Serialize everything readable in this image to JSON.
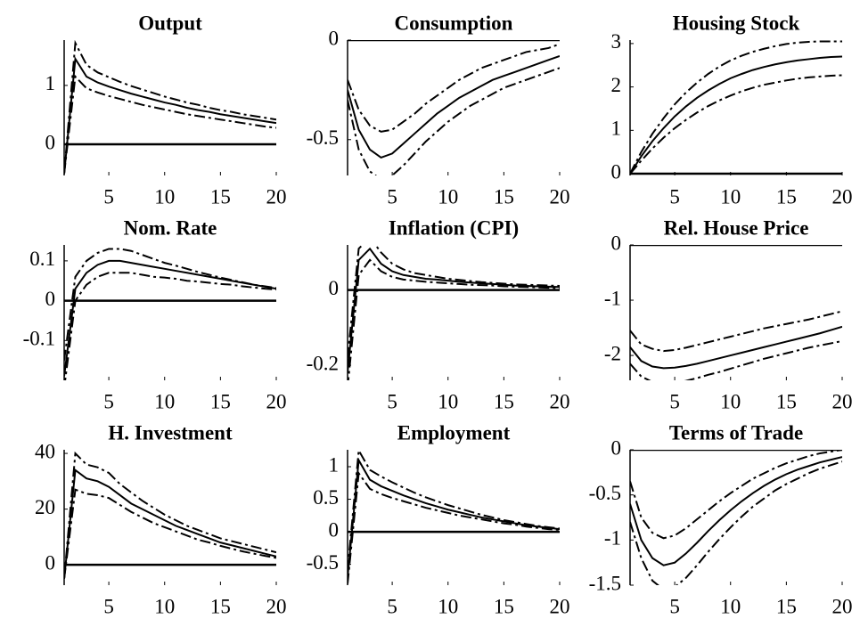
{
  "chart_data": [
    {
      "type": "line",
      "title": "Output",
      "x": [
        1,
        2,
        3,
        4,
        5,
        6,
        7,
        8,
        9,
        10,
        11,
        12,
        13,
        14,
        15,
        16,
        17,
        18,
        19,
        20
      ],
      "xlim": [
        1,
        20
      ],
      "xticks": [
        5,
        10,
        15,
        20
      ],
      "ylim": [
        -0.53,
        1.77
      ],
      "yticks": [
        0,
        1
      ],
      "reference_line": 0,
      "series": [
        {
          "color": "#000000",
          "dash": "solid",
          "values": [
            -0.5,
            1.45,
            1.15,
            1.05,
            0.98,
            0.92,
            0.86,
            0.81,
            0.76,
            0.71,
            0.67,
            0.62,
            0.58,
            0.55,
            0.51,
            0.48,
            0.45,
            0.42,
            0.39,
            0.36
          ]
        },
        {
          "color": "#000000",
          "dash": "dashdot",
          "values": [
            -0.5,
            1.72,
            1.35,
            1.22,
            1.14,
            1.06,
            0.99,
            0.93,
            0.87,
            0.81,
            0.76,
            0.71,
            0.67,
            0.62,
            0.58,
            0.55,
            0.51,
            0.48,
            0.45,
            0.42
          ]
        },
        {
          "color": "#000000",
          "dash": "dashdot",
          "values": [
            -0.5,
            1.15,
            0.95,
            0.88,
            0.82,
            0.77,
            0.72,
            0.67,
            0.63,
            0.59,
            0.55,
            0.51,
            0.48,
            0.45,
            0.42,
            0.39,
            0.36,
            0.33,
            0.3,
            0.28
          ]
        }
      ]
    },
    {
      "type": "line",
      "title": "Consumption",
      "x": [
        1,
        2,
        3,
        4,
        5,
        6,
        7,
        8,
        9,
        10,
        11,
        12,
        13,
        14,
        15,
        16,
        17,
        18,
        19,
        20
      ],
      "xlim": [
        1,
        20
      ],
      "xticks": [
        5,
        10,
        15,
        20
      ],
      "ylim": [
        -0.68,
        0
      ],
      "yticks": [
        -0.5,
        0
      ],
      "reference_line": 0,
      "series": [
        {
          "color": "#000000",
          "dash": "solid",
          "values": [
            -0.25,
            -0.45,
            -0.55,
            -0.59,
            -0.57,
            -0.52,
            -0.47,
            -0.42,
            -0.37,
            -0.33,
            -0.29,
            -0.26,
            -0.23,
            -0.2,
            -0.18,
            -0.16,
            -0.14,
            -0.12,
            -0.1,
            -0.08
          ]
        },
        {
          "color": "#000000",
          "dash": "dashdot",
          "values": [
            -0.2,
            -0.35,
            -0.43,
            -0.46,
            -0.45,
            -0.41,
            -0.37,
            -0.32,
            -0.28,
            -0.24,
            -0.2,
            -0.17,
            -0.14,
            -0.12,
            -0.1,
            -0.08,
            -0.06,
            -0.05,
            -0.04,
            -0.02
          ]
        },
        {
          "color": "#000000",
          "dash": "dashdot",
          "values": [
            -0.3,
            -0.55,
            -0.66,
            -0.7,
            -0.68,
            -0.63,
            -0.57,
            -0.51,
            -0.46,
            -0.41,
            -0.37,
            -0.33,
            -0.3,
            -0.27,
            -0.24,
            -0.22,
            -0.2,
            -0.18,
            -0.16,
            -0.14
          ]
        }
      ]
    },
    {
      "type": "line",
      "title": "Housing Stock",
      "x": [
        1,
        2,
        3,
        4,
        5,
        6,
        7,
        8,
        9,
        10,
        11,
        12,
        13,
        14,
        15,
        16,
        17,
        18,
        19,
        20
      ],
      "xlim": [
        1,
        20
      ],
      "xticks": [
        5,
        10,
        15,
        20
      ],
      "ylim": [
        -0.04,
        3.08
      ],
      "yticks": [
        0,
        1,
        2,
        3
      ],
      "reference_line": 0,
      "series": [
        {
          "color": "#000000",
          "dash": "solid",
          "values": [
            0,
            0.4,
            0.75,
            1.05,
            1.32,
            1.55,
            1.75,
            1.92,
            2.07,
            2.2,
            2.3,
            2.39,
            2.46,
            2.52,
            2.57,
            2.61,
            2.64,
            2.67,
            2.69,
            2.7
          ]
        },
        {
          "color": "#000000",
          "dash": "dashdot",
          "values": [
            0,
            0.5,
            0.92,
            1.28,
            1.6,
            1.87,
            2.1,
            2.3,
            2.47,
            2.61,
            2.72,
            2.81,
            2.88,
            2.94,
            2.99,
            3.02,
            3.04,
            3.05,
            3.05,
            3.05
          ]
        },
        {
          "color": "#000000",
          "dash": "dashdot",
          "values": [
            0,
            0.3,
            0.58,
            0.83,
            1.05,
            1.24,
            1.41,
            1.56,
            1.69,
            1.8,
            1.9,
            1.98,
            2.05,
            2.1,
            2.15,
            2.19,
            2.22,
            2.24,
            2.26,
            2.27
          ]
        }
      ]
    },
    {
      "type": "line",
      "title": "Nom. Rate",
      "x": [
        1,
        2,
        3,
        4,
        5,
        6,
        7,
        8,
        9,
        10,
        11,
        12,
        13,
        14,
        15,
        16,
        17,
        18,
        19,
        20
      ],
      "xlim": [
        1,
        20
      ],
      "xticks": [
        5,
        10,
        15,
        20
      ],
      "ylim": [
        -0.2,
        0.14
      ],
      "yticks": [
        -0.1,
        0,
        0.1
      ],
      "reference_line": 0,
      "series": [
        {
          "color": "#000000",
          "dash": "solid",
          "values": [
            -0.19,
            0.03,
            0.07,
            0.09,
            0.1,
            0.1,
            0.095,
            0.09,
            0.085,
            0.08,
            0.075,
            0.07,
            0.065,
            0.06,
            0.055,
            0.05,
            0.045,
            0.04,
            0.035,
            0.03
          ]
        },
        {
          "color": "#000000",
          "dash": "dashdot",
          "values": [
            -0.15,
            0.06,
            0.1,
            0.12,
            0.13,
            0.13,
            0.125,
            0.115,
            0.105,
            0.095,
            0.088,
            0.08,
            0.072,
            0.065,
            0.058,
            0.052,
            0.046,
            0.04,
            0.036,
            0.032
          ]
        },
        {
          "color": "#000000",
          "dash": "dashdot",
          "values": [
            -0.22,
            0.0,
            0.04,
            0.06,
            0.07,
            0.07,
            0.07,
            0.065,
            0.06,
            0.058,
            0.055,
            0.05,
            0.048,
            0.045,
            0.042,
            0.04,
            0.036,
            0.033,
            0.03,
            0.028
          ]
        }
      ]
    },
    {
      "type": "line",
      "title": "Inflation (CPI)",
      "x": [
        1,
        2,
        3,
        4,
        5,
        6,
        7,
        8,
        9,
        10,
        11,
        12,
        13,
        14,
        15,
        16,
        17,
        18,
        19,
        20
      ],
      "xlim": [
        1,
        20
      ],
      "xticks": [
        5,
        10,
        15,
        20
      ],
      "ylim": [
        -0.24,
        0.12
      ],
      "yticks": [
        -0.2,
        0
      ],
      "reference_line": 0,
      "series": [
        {
          "color": "#000000",
          "dash": "solid",
          "values": [
            -0.22,
            0.08,
            0.11,
            0.07,
            0.05,
            0.04,
            0.035,
            0.03,
            0.028,
            0.025,
            0.022,
            0.02,
            0.018,
            0.016,
            0.014,
            0.012,
            0.011,
            0.01,
            0.009,
            0.008
          ]
        },
        {
          "color": "#000000",
          "dash": "dashdot",
          "values": [
            -0.18,
            0.11,
            0.14,
            0.1,
            0.07,
            0.055,
            0.045,
            0.04,
            0.035,
            0.03,
            0.027,
            0.024,
            0.021,
            0.019,
            0.017,
            0.015,
            0.014,
            0.013,
            0.012,
            0.011
          ]
        },
        {
          "color": "#000000",
          "dash": "dashdot",
          "values": [
            -0.26,
            0.04,
            0.08,
            0.05,
            0.035,
            0.028,
            0.025,
            0.022,
            0.02,
            0.018,
            0.016,
            0.014,
            0.013,
            0.012,
            0.01,
            0.009,
            0.008,
            0.007,
            0.006,
            0.005
          ]
        }
      ]
    },
    {
      "type": "line",
      "title": "Rel. House Price",
      "x": [
        1,
        2,
        3,
        4,
        5,
        6,
        7,
        8,
        9,
        10,
        11,
        12,
        13,
        14,
        15,
        16,
        17,
        18,
        19,
        20
      ],
      "xlim": [
        1,
        20
      ],
      "xticks": [
        5,
        10,
        15,
        20
      ],
      "ylim": [
        -2.45,
        0
      ],
      "yticks": [
        -2,
        -1,
        0
      ],
      "reference_line": 0,
      "series": [
        {
          "color": "#000000",
          "dash": "solid",
          "values": [
            -1.85,
            -2.1,
            -2.2,
            -2.23,
            -2.22,
            -2.19,
            -2.15,
            -2.1,
            -2.05,
            -2.0,
            -1.95,
            -1.9,
            -1.85,
            -1.8,
            -1.75,
            -1.7,
            -1.65,
            -1.6,
            -1.54,
            -1.48
          ]
        },
        {
          "color": "#000000",
          "dash": "dashdot",
          "values": [
            -1.55,
            -1.8,
            -1.88,
            -1.92,
            -1.9,
            -1.86,
            -1.81,
            -1.76,
            -1.71,
            -1.66,
            -1.61,
            -1.56,
            -1.51,
            -1.47,
            -1.43,
            -1.39,
            -1.35,
            -1.3,
            -1.25,
            -1.2
          ]
        },
        {
          "color": "#000000",
          "dash": "dashdot",
          "values": [
            -2.15,
            -2.38,
            -2.48,
            -2.52,
            -2.5,
            -2.46,
            -2.41,
            -2.35,
            -2.3,
            -2.24,
            -2.18,
            -2.12,
            -2.06,
            -2.01,
            -1.96,
            -1.91,
            -1.86,
            -1.82,
            -1.78,
            -1.74
          ]
        }
      ]
    },
    {
      "type": "line",
      "title": "H. Investment",
      "x": [
        1,
        2,
        3,
        4,
        5,
        6,
        7,
        8,
        9,
        10,
        11,
        12,
        13,
        14,
        15,
        16,
        17,
        18,
        19,
        20
      ],
      "xlim": [
        1,
        20
      ],
      "xticks": [
        5,
        10,
        15,
        20
      ],
      "ylim": [
        -7.3,
        41.3
      ],
      "yticks": [
        0,
        20,
        40
      ],
      "reference_line": 0,
      "series": [
        {
          "color": "#000000",
          "dash": "solid",
          "values": [
            -5,
            34,
            31,
            30,
            28,
            25,
            22,
            20,
            18,
            16,
            14,
            12.5,
            11,
            9.5,
            8,
            7,
            6,
            5,
            4,
            3
          ]
        },
        {
          "color": "#000000",
          "dash": "dashdot",
          "values": [
            -5,
            40,
            36,
            35,
            33,
            29,
            26,
            23,
            20.5,
            18,
            16,
            14,
            12.5,
            11,
            9.5,
            8.5,
            7.5,
            6.5,
            5.5,
            4.5
          ]
        },
        {
          "color": "#000000",
          "dash": "dashdot",
          "values": [
            -5,
            27,
            25.5,
            25,
            24,
            21.5,
            19,
            17,
            15,
            13.5,
            12,
            10.5,
            9,
            8,
            6.8,
            5.8,
            4.8,
            4,
            3.2,
            2.5
          ]
        }
      ]
    },
    {
      "type": "line",
      "title": "Employment",
      "x": [
        1,
        2,
        3,
        4,
        5,
        6,
        7,
        8,
        9,
        10,
        11,
        12,
        13,
        14,
        15,
        16,
        17,
        18,
        19,
        20
      ],
      "xlim": [
        1,
        20
      ],
      "xticks": [
        5,
        10,
        15,
        20
      ],
      "ylim": [
        -0.82,
        1.26
      ],
      "yticks": [
        -0.5,
        0,
        0.5,
        1
      ],
      "reference_line": 0,
      "series": [
        {
          "color": "#000000",
          "dash": "solid",
          "values": [
            -0.7,
            1.1,
            0.8,
            0.7,
            0.63,
            0.56,
            0.5,
            0.44,
            0.39,
            0.34,
            0.3,
            0.26,
            0.22,
            0.19,
            0.16,
            0.13,
            0.1,
            0.08,
            0.06,
            0.04
          ]
        },
        {
          "color": "#000000",
          "dash": "dashdot",
          "values": [
            -0.6,
            1.25,
            0.95,
            0.85,
            0.76,
            0.68,
            0.6,
            0.53,
            0.47,
            0.41,
            0.36,
            0.31,
            0.26,
            0.22,
            0.18,
            0.15,
            0.12,
            0.09,
            0.07,
            0.05
          ]
        },
        {
          "color": "#000000",
          "dash": "dashdot",
          "values": [
            -0.8,
            0.9,
            0.66,
            0.58,
            0.52,
            0.47,
            0.42,
            0.37,
            0.33,
            0.29,
            0.25,
            0.22,
            0.19,
            0.16,
            0.13,
            0.11,
            0.08,
            0.06,
            0.04,
            0.03
          ]
        }
      ]
    },
    {
      "type": "line",
      "title": "Terms of Trade",
      "x": [
        1,
        2,
        3,
        4,
        5,
        6,
        7,
        8,
        9,
        10,
        11,
        12,
        13,
        14,
        15,
        16,
        17,
        18,
        19,
        20
      ],
      "xlim": [
        1,
        20
      ],
      "xticks": [
        5,
        10,
        15,
        20
      ],
      "ylim": [
        -1.5,
        0
      ],
      "yticks": [
        -1.5,
        -1,
        -0.5,
        0
      ],
      "reference_line": 0,
      "series": [
        {
          "color": "#000000",
          "dash": "solid",
          "values": [
            -0.6,
            -1.0,
            -1.2,
            -1.28,
            -1.25,
            -1.15,
            -1.03,
            -0.9,
            -0.78,
            -0.67,
            -0.57,
            -0.48,
            -0.4,
            -0.33,
            -0.27,
            -0.22,
            -0.18,
            -0.14,
            -0.11,
            -0.08
          ]
        },
        {
          "color": "#000000",
          "dash": "dashdot",
          "values": [
            -0.35,
            -0.75,
            -0.92,
            -0.98,
            -0.95,
            -0.87,
            -0.77,
            -0.67,
            -0.57,
            -0.48,
            -0.4,
            -0.32,
            -0.26,
            -0.2,
            -0.15,
            -0.11,
            -0.07,
            -0.04,
            -0.02,
            0.0
          ]
        },
        {
          "color": "#000000",
          "dash": "dashdot",
          "values": [
            -0.8,
            -1.2,
            -1.45,
            -1.55,
            -1.52,
            -1.42,
            -1.28,
            -1.13,
            -0.99,
            -0.86,
            -0.74,
            -0.63,
            -0.54,
            -0.45,
            -0.38,
            -0.32,
            -0.26,
            -0.21,
            -0.17,
            -0.13
          ]
        }
      ]
    }
  ]
}
